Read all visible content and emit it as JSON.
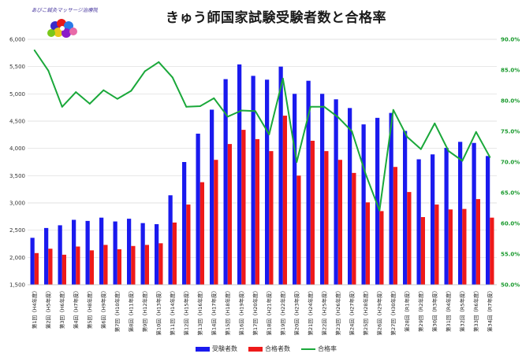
{
  "logo_text": "あびこ鍼灸マッサージ治療院",
  "colors": {
    "applicants": "#1a1aee",
    "passed": "#ee1a1a",
    "rate": "#1aa83a",
    "grid": "#d9d9d9"
  },
  "chart_data": {
    "type": "bar+line",
    "title": "きゅう師国家試験受験者数と合格率",
    "categories": [
      "第1回（H4年度）",
      "第2回（H5年度）",
      "第3回（H6年度）",
      "第4回（H7年度）",
      "第5回（H8年度）",
      "第6回（H9年度）",
      "第7回（H10年度）",
      "第8回（H11年度）",
      "第9回（H12年度）",
      "第10回（H13年度）",
      "第11回（H14年度）",
      "第12回（H15年度）",
      "第13回（H16年度）",
      "第14回（H17年度）",
      "第15回（H18年度）",
      "第16回（H19年度）",
      "第17回（H20年度）",
      "第18回（H21年度）",
      "第19回（H22年度）",
      "第20回（H23年度）",
      "第21回（H24年度）",
      "第22回（H25年度）",
      "第23回（H26年度）",
      "第24回（H27年度）",
      "第25回（H28年度）",
      "第26回（H29年度）",
      "第27回（H30年度）",
      "第28回（R1年度）",
      "第29回（R2年度）",
      "第30回（R3年度）",
      "第31回（R4年度）",
      "第32回（R5年度）",
      "第33回（R6年度）",
      "第34回（R7年度）"
    ],
    "series": [
      {
        "name": "受験者数",
        "axis": "left",
        "kind": "bar",
        "values": [
          2360,
          2540,
          2590,
          2690,
          2670,
          2730,
          2660,
          2710,
          2630,
          2610,
          3140,
          3750,
          4270,
          4710,
          5270,
          5540,
          5330,
          5260,
          5500,
          5000,
          5240,
          5000,
          4900,
          4740,
          4440,
          4560,
          4650,
          4320,
          3800,
          3890,
          4010,
          4120,
          4100,
          3860
        ]
      },
      {
        "name": "合格者数",
        "axis": "left",
        "kind": "bar",
        "values": [
          2080,
          2160,
          2050,
          2200,
          2130,
          2230,
          2150,
          2210,
          2230,
          2260,
          2640,
          2970,
          3380,
          3790,
          4080,
          4340,
          4170,
          3950,
          4600,
          3500,
          4140,
          3950,
          3790,
          3550,
          3010,
          2850,
          3660,
          3200,
          2740,
          2970,
          2880,
          2890,
          3070,
          2730
        ]
      },
      {
        "name": "合格率",
        "axis": "right",
        "kind": "line",
        "values": [
          88.2,
          84.9,
          79.0,
          81.4,
          79.5,
          81.7,
          80.3,
          81.6,
          84.8,
          86.3,
          83.8,
          79.0,
          79.1,
          80.4,
          77.4,
          78.4,
          78.3,
          74.5,
          83.6,
          70.0,
          79.0,
          79.0,
          77.3,
          75.0,
          68.0,
          62.1,
          78.5,
          74.1,
          72.1,
          76.3,
          71.8,
          70.2,
          74.9,
          70.8
        ]
      }
    ],
    "left_axis": {
      "min": 1500,
      "max": 6000,
      "step": 500,
      "ticks": [
        "1,500",
        "2,000",
        "2,500",
        "3,000",
        "3,500",
        "4,000",
        "4,500",
        "5,000",
        "5,500",
        "6,000"
      ]
    },
    "right_axis": {
      "min": 50,
      "max": 90,
      "step": 5,
      "ticks": [
        "50.0%",
        "55.0%",
        "60.0%",
        "65.0%",
        "70.0%",
        "75.0%",
        "80.0%",
        "85.0%",
        "90.0%"
      ]
    },
    "grid": true,
    "legend_position": "bottom"
  }
}
